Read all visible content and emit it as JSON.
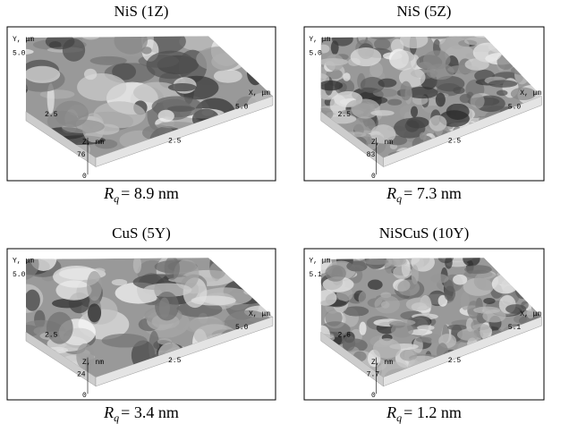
{
  "panels": [
    {
      "title": "NiS (1Z)",
      "y_axis": {
        "label": "Y, μm",
        "ticks": [
          "5.0",
          "2.5"
        ]
      },
      "x_axis": {
        "label": "X, μm",
        "ticks": [
          "5.0",
          "2.5"
        ]
      },
      "z_axis": {
        "label": "Z, nm",
        "ticks": [
          "76",
          "0"
        ]
      },
      "caption": {
        "symbol": "R",
        "subscript": "q",
        "text": "= 8.9 nm"
      }
    },
    {
      "title": "NiS (5Z)",
      "y_axis": {
        "label": "Y, μm",
        "ticks": [
          "5.0",
          "2.5"
        ]
      },
      "x_axis": {
        "label": "X, μm",
        "ticks": [
          "5.0",
          "2.5"
        ]
      },
      "z_axis": {
        "label": "Z, nm",
        "ticks": [
          "83",
          "0"
        ]
      },
      "caption": {
        "symbol": "R",
        "subscript": "q",
        "text": "= 7.3 nm"
      }
    },
    {
      "title": "CuS (5Y)",
      "y_axis": {
        "label": "Y, μm",
        "ticks": [
          "5.0",
          "2.5"
        ]
      },
      "x_axis": {
        "label": "X, μm",
        "ticks": [
          "5.0",
          "2.5"
        ]
      },
      "z_axis": {
        "label": "Z, nm",
        "ticks": [
          "24",
          "0"
        ]
      },
      "caption": {
        "symbol": "R",
        "subscript": "q",
        "text": "= 3.4 nm"
      }
    },
    {
      "title": "NiSCuS (10Y)",
      "y_axis": {
        "label": "Y, μm",
        "ticks": [
          "5.1",
          "2.6"
        ]
      },
      "x_axis": {
        "label": "X, μm",
        "ticks": [
          "5.1",
          "2.5"
        ]
      },
      "z_axis": {
        "label": "Z, nm",
        "ticks": [
          "7.7",
          "0"
        ]
      },
      "caption": {
        "symbol": "R",
        "subscript": "q",
        "text": "= 1.2 nm"
      }
    }
  ]
}
